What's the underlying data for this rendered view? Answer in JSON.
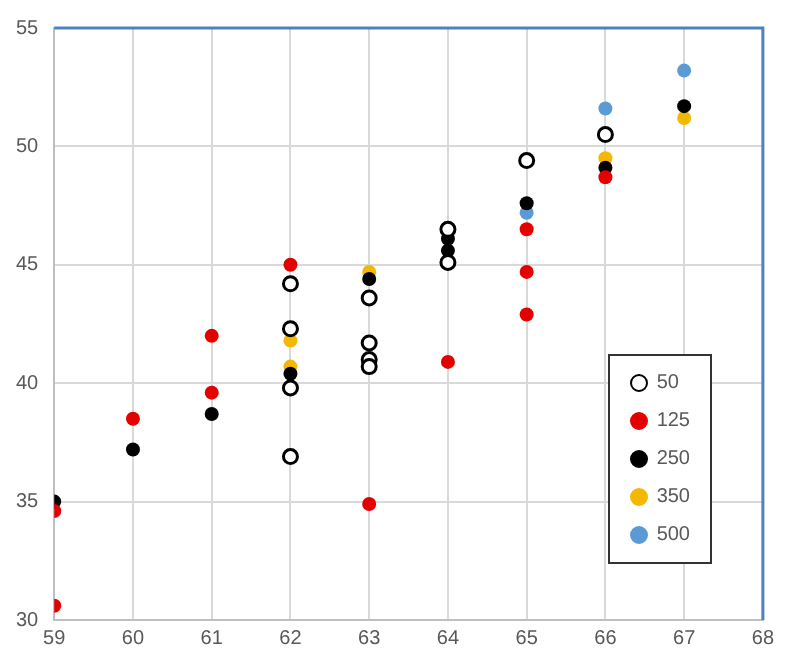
{
  "chart_data": {
    "type": "scatter",
    "xlim": [
      59,
      68
    ],
    "xticks": [
      59,
      60,
      61,
      62,
      63,
      64,
      65,
      66,
      67,
      68
    ],
    "ylim": [
      30,
      55
    ],
    "yticks": [
      30,
      35,
      40,
      45,
      50,
      55
    ],
    "grid": true,
    "legend": "bottom right",
    "marker": "circle",
    "series": [
      {
        "name": "50",
        "color": "#ffffff",
        "x": [
          62,
          62,
          62,
          62,
          63,
          63,
          63,
          63,
          64,
          64,
          65,
          66
        ],
        "values": [
          44.2,
          42.3,
          39.8,
          36.9,
          43.6,
          41.7,
          41.0,
          40.7,
          46.5,
          45.1,
          49.4,
          50.5
        ]
      },
      {
        "name": "125",
        "color": "#e50000",
        "x": [
          59,
          59,
          60,
          61,
          61,
          62,
          63,
          64,
          65,
          65,
          65,
          66
        ],
        "values": [
          34.6,
          30.6,
          38.5,
          42.0,
          39.6,
          45.0,
          34.9,
          40.9,
          46.5,
          44.7,
          42.9,
          48.7
        ]
      },
      {
        "name": "250",
        "color": "#000000",
        "x": [
          59,
          60,
          61,
          62,
          63,
          64,
          64,
          65,
          66,
          67
        ],
        "values": [
          35.0,
          37.2,
          38.7,
          40.4,
          44.4,
          46.1,
          45.6,
          47.6,
          49.1,
          51.7
        ]
      },
      {
        "name": "350",
        "color": "#f5b800",
        "x": [
          62,
          62,
          63,
          66,
          67
        ],
        "values": [
          41.8,
          40.7,
          44.7,
          49.5,
          51.2
        ]
      },
      {
        "name": "500",
        "color": "#5b9bd5",
        "x": [
          65,
          66,
          67
        ],
        "values": [
          47.2,
          51.6,
          53.2
        ]
      }
    ]
  }
}
